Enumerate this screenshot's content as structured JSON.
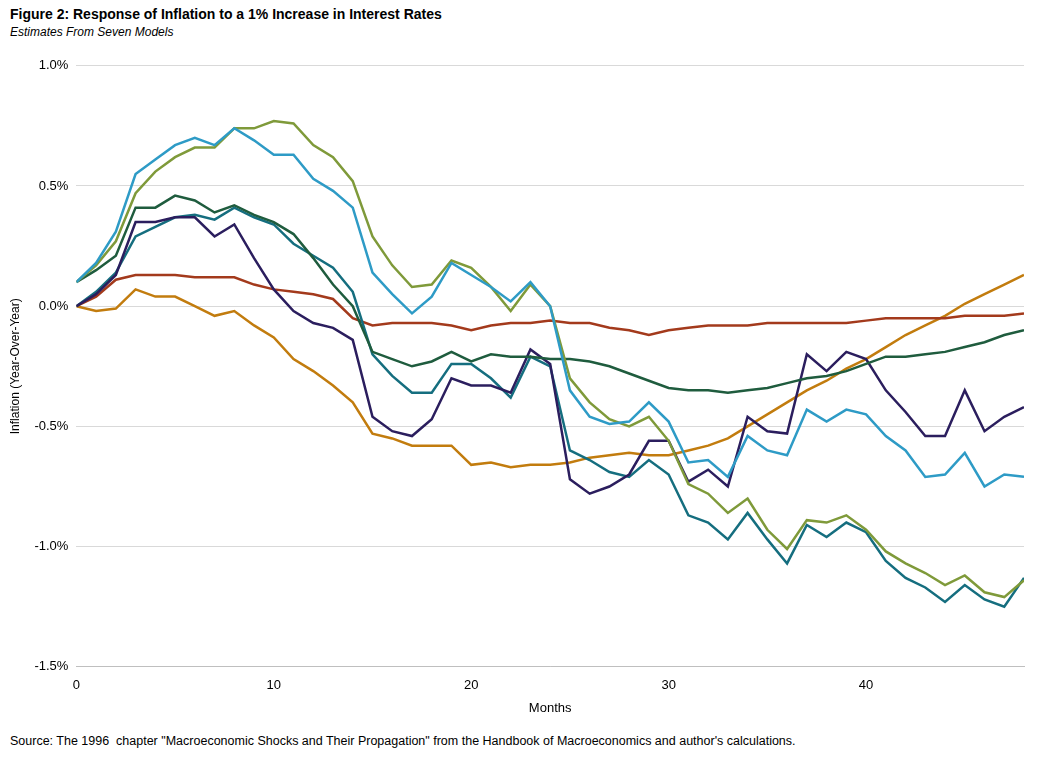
{
  "chart_data": {
    "type": "line",
    "title": "Figure 2: Response of Inflation to a 1% Increase in Interest Rates",
    "subtitle": "Estimates From Seven Models",
    "x_label": "Months",
    "y_label": "Inflation (Year-Over-Year)",
    "source": "Source: The 1996  chapter \"Macroeconomic Shocks and Their Propagation\" from the Handbook of Macroeconomics and author's calculations.",
    "grid": true,
    "xlim": [
      0,
      48
    ],
    "xticks": [
      0,
      10,
      20,
      30,
      40
    ],
    "ylim": [
      -1.5,
      1.0
    ],
    "yticks": [
      {
        "value": -1.5,
        "label": "-1.5%"
      },
      {
        "value": -1.0,
        "label": "-1.0%"
      },
      {
        "value": -0.5,
        "label": "-0.5%"
      },
      {
        "value": 0.0,
        "label": "0.0%"
      },
      {
        "value": 0.5,
        "label": "0.5%"
      },
      {
        "value": 1.0,
        "label": "1.0%"
      }
    ],
    "x": [
      0,
      1,
      2,
      3,
      4,
      5,
      6,
      7,
      8,
      9,
      10,
      11,
      12,
      13,
      14,
      15,
      16,
      17,
      18,
      19,
      20,
      21,
      22,
      23,
      24,
      25,
      26,
      27,
      28,
      29,
      30,
      31,
      32,
      33,
      34,
      35,
      36,
      37,
      38,
      39,
      40,
      41,
      42,
      43,
      44,
      45,
      46,
      47,
      48
    ],
    "series": [
      {
        "color": "#2e9bc6",
        "values": [
          0.1,
          0.18,
          0.31,
          0.55,
          0.61,
          0.67,
          0.7,
          0.67,
          0.74,
          0.69,
          0.63,
          0.63,
          0.53,
          0.48,
          0.41,
          0.14,
          0.05,
          -0.03,
          0.04,
          0.18,
          0.13,
          0.08,
          0.02,
          0.1,
          0.0,
          -0.35,
          -0.46,
          -0.49,
          -0.48,
          -0.4,
          -0.48,
          -0.65,
          -0.64,
          -0.71,
          -0.54,
          -0.6,
          -0.62,
          -0.43,
          -0.48,
          -0.43,
          -0.45,
          -0.54,
          -0.6,
          -0.71,
          -0.7,
          -0.61,
          -0.75,
          -0.7,
          -0.71
        ]
      },
      {
        "color": "#7f9a3a",
        "values": [
          0.1,
          0.17,
          0.27,
          0.47,
          0.56,
          0.62,
          0.66,
          0.66,
          0.74,
          0.74,
          0.77,
          0.76,
          0.67,
          0.62,
          0.52,
          0.29,
          0.17,
          0.08,
          0.09,
          0.19,
          0.16,
          0.08,
          -0.02,
          0.09,
          0.0,
          -0.3,
          -0.4,
          -0.47,
          -0.5,
          -0.46,
          -0.56,
          -0.74,
          -0.78,
          -0.86,
          -0.8,
          -0.93,
          -1.01,
          -0.89,
          -0.9,
          -0.87,
          -0.93,
          -1.02,
          -1.07,
          -1.11,
          -1.16,
          -1.12,
          -1.19,
          -1.21,
          -1.14
        ]
      },
      {
        "color": "#1f5c3e",
        "values": [
          0.1,
          0.15,
          0.21,
          0.41,
          0.41,
          0.46,
          0.44,
          0.39,
          0.42,
          0.38,
          0.35,
          0.3,
          0.2,
          0.09,
          0.0,
          -0.19,
          -0.22,
          -0.25,
          -0.23,
          -0.19,
          -0.23,
          -0.2,
          -0.21,
          -0.21,
          -0.22,
          -0.22,
          -0.23,
          -0.25,
          -0.28,
          -0.31,
          -0.34,
          -0.35,
          -0.35,
          -0.36,
          -0.35,
          -0.34,
          -0.32,
          -0.3,
          -0.29,
          -0.27,
          -0.24,
          -0.21,
          -0.21,
          -0.2,
          -0.19,
          -0.17,
          -0.15,
          -0.12,
          -0.1
        ]
      },
      {
        "color": "#2b1e5e",
        "values": [
          0.0,
          0.05,
          0.13,
          0.35,
          0.35,
          0.37,
          0.37,
          0.29,
          0.34,
          0.2,
          0.07,
          -0.02,
          -0.07,
          -0.09,
          -0.14,
          -0.46,
          -0.52,
          -0.54,
          -0.47,
          -0.3,
          -0.33,
          -0.33,
          -0.36,
          -0.18,
          -0.24,
          -0.72,
          -0.78,
          -0.75,
          -0.7,
          -0.56,
          -0.56,
          -0.73,
          -0.68,
          -0.75,
          -0.46,
          -0.52,
          -0.53,
          -0.2,
          -0.27,
          -0.19,
          -0.22,
          -0.35,
          -0.44,
          -0.54,
          -0.54,
          -0.35,
          -0.52,
          -0.46,
          -0.42
        ]
      },
      {
        "color": "#156e7f",
        "values": [
          0.0,
          0.06,
          0.14,
          0.29,
          0.33,
          0.37,
          0.38,
          0.36,
          0.41,
          0.37,
          0.34,
          0.26,
          0.21,
          0.16,
          0.06,
          -0.2,
          -0.29,
          -0.36,
          -0.36,
          -0.24,
          -0.24,
          -0.3,
          -0.38,
          -0.21,
          -0.25,
          -0.6,
          -0.64,
          -0.69,
          -0.71,
          -0.64,
          -0.7,
          -0.87,
          -0.9,
          -0.97,
          -0.86,
          -0.97,
          -1.07,
          -0.91,
          -0.96,
          -0.9,
          -0.94,
          -1.06,
          -1.13,
          -1.17,
          -1.23,
          -1.16,
          -1.22,
          -1.25,
          -1.13
        ]
      },
      {
        "color": "#a33a1c",
        "values": [
          0.0,
          0.04,
          0.11,
          0.13,
          0.13,
          0.13,
          0.12,
          0.12,
          0.12,
          0.09,
          0.07,
          0.06,
          0.05,
          0.03,
          -0.05,
          -0.08,
          -0.07,
          -0.07,
          -0.07,
          -0.08,
          -0.1,
          -0.08,
          -0.07,
          -0.07,
          -0.06,
          -0.07,
          -0.07,
          -0.09,
          -0.1,
          -0.12,
          -0.1,
          -0.09,
          -0.08,
          -0.08,
          -0.08,
          -0.07,
          -0.07,
          -0.07,
          -0.07,
          -0.07,
          -0.06,
          -0.05,
          -0.05,
          -0.05,
          -0.05,
          -0.04,
          -0.04,
          -0.04,
          -0.03
        ]
      },
      {
        "color": "#c27c0e",
        "values": [
          0.0,
          -0.02,
          -0.01,
          0.07,
          0.04,
          0.04,
          0.0,
          -0.04,
          -0.02,
          -0.08,
          -0.13,
          -0.22,
          -0.27,
          -0.33,
          -0.4,
          -0.53,
          -0.55,
          -0.58,
          -0.58,
          -0.58,
          -0.66,
          -0.65,
          -0.67,
          -0.66,
          -0.66,
          -0.65,
          -0.63,
          -0.62,
          -0.61,
          -0.62,
          -0.62,
          -0.6,
          -0.58,
          -0.55,
          -0.5,
          -0.45,
          -0.4,
          -0.35,
          -0.31,
          -0.26,
          -0.22,
          -0.17,
          -0.12,
          -0.08,
          -0.04,
          0.01,
          0.05,
          0.09,
          0.13
        ]
      }
    ]
  }
}
